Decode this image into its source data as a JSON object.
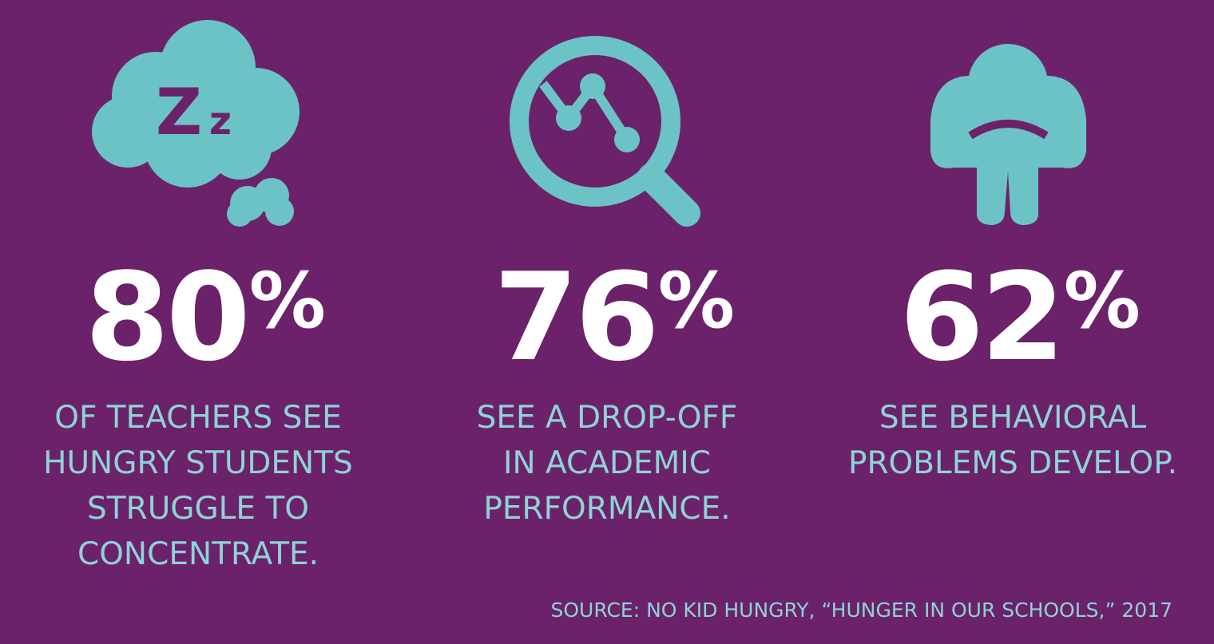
{
  "stats": [
    {
      "value": "80",
      "unit": "%",
      "lines": [
        "OF TEACHERS SEE",
        "HUNGRY STUDENTS",
        "STRUGGLE TO",
        "CONCENTRATE."
      ]
    },
    {
      "value": "76",
      "unit": "%",
      "lines": [
        "SEE A DROP-OFF",
        "IN ACADEMIC",
        "PERFORMANCE."
      ]
    },
    {
      "value": "62",
      "unit": "%",
      "lines": [
        "SEE BEHAVIORAL",
        "PROBLEMS DEVELOP."
      ]
    }
  ],
  "source": "SOURCE: NO KID HUNGRY, “HUNGER IN OUR SCHOOLS,” 2017"
}
